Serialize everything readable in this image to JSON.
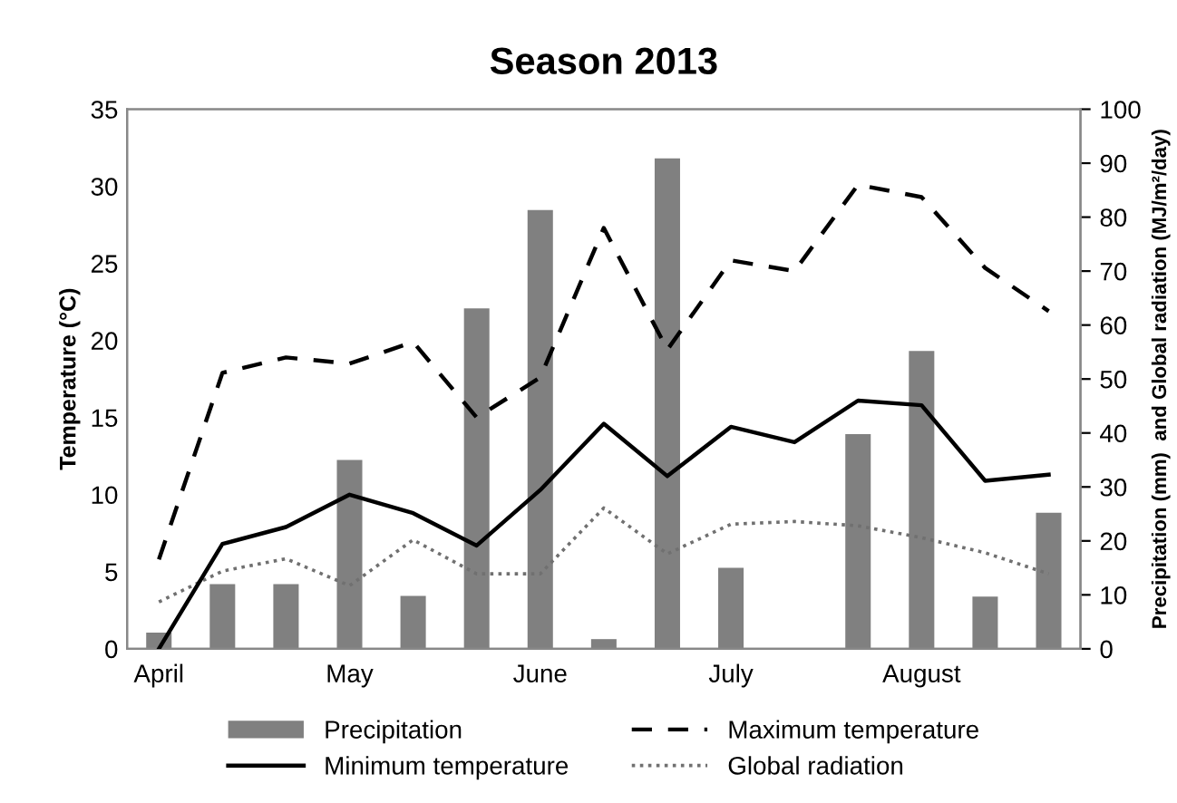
{
  "chart_data": {
    "type": "bar",
    "title": "Season 2013",
    "ylabel": "Temperature (°C)",
    "y2label": "Precipitation (mm)  and Global radiation (MJ/m²/day)",
    "categories": [
      "April",
      null,
      null,
      "May",
      null,
      null,
      "June",
      null,
      null,
      "July",
      null,
      null,
      "August",
      null,
      null
    ],
    "series": [
      {
        "name": "Precipitation",
        "axis": "y2",
        "color": "#808080",
        "values": [
          3.0,
          12.0,
          12.0,
          35.0,
          9.8,
          63.1,
          81.3,
          1.8,
          90.9,
          15.0,
          null,
          39.8,
          55.2,
          9.7,
          25.2
        ]
      },
      {
        "name": "Maximum temperature",
        "type": "line",
        "line_style": "dashed",
        "color": "#000000",
        "values": [
          5.8,
          17.9,
          18.9,
          18.5,
          19.9,
          15.0,
          17.6,
          27.3,
          19.4,
          25.2,
          24.5,
          30.1,
          29.3,
          24.7,
          21.9
        ]
      },
      {
        "name": "Minimum temperature",
        "type": "line",
        "line_style": "solid",
        "color": "#000000",
        "values": [
          0.0,
          6.8,
          7.9,
          10.0,
          8.8,
          6.7,
          10.3,
          14.6,
          11.2,
          14.4,
          13.4,
          16.1,
          15.8,
          10.9,
          11.3
        ]
      },
      {
        "name": "Global radiation",
        "type": "line",
        "axis": "y2",
        "line_style": "dotted",
        "color": "#707070",
        "values": [
          8.7,
          14.4,
          16.7,
          11.7,
          20.2,
          13.9,
          13.9,
          26.1,
          17.6,
          23.1,
          23.6,
          22.8,
          20.6,
          17.8,
          13.9
        ]
      }
    ],
    "ylim": [
      0,
      35
    ],
    "yticks": [
      0,
      5,
      10,
      15,
      20,
      25,
      30,
      35
    ],
    "y2lim": [
      0,
      100
    ],
    "y2ticks": [
      0,
      10,
      20,
      30,
      40,
      50,
      60,
      70,
      80,
      90,
      100
    ],
    "grid": false,
    "legend": "bottom",
    "marker": "none"
  }
}
